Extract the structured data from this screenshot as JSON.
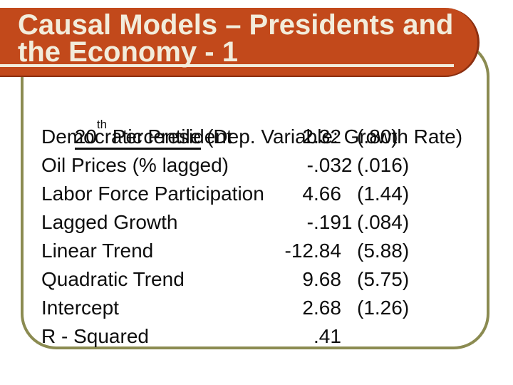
{
  "slide": {
    "title": {
      "line1": "Causal Models – Presidents and",
      "line2": "the Economy - 1"
    },
    "regression": {
      "header": {
        "percentile_number": "20",
        "percentile_superscript": "th",
        "percentile_rest": " Percentile",
        "dependent_variable_note": " (Dep. Variable: Growth Rate)"
      },
      "rows": [
        {
          "label": "Democratic President",
          "coefficient": "2.32",
          "standard_error": "(.80)"
        },
        {
          "label": "Oil Prices (% lagged)",
          "coefficient": "-.032",
          "standard_error": "(.016)"
        },
        {
          "label": "Labor Force Participation",
          "coefficient": "4.66",
          "standard_error": "(1.44)"
        },
        {
          "label": "Lagged Growth",
          "coefficient": "-.191",
          "standard_error": "(.084)"
        },
        {
          "label": "Linear Trend",
          "coefficient": "-12.84",
          "standard_error": "(5.88)"
        },
        {
          "label": "Quadratic Trend",
          "coefficient": "9.68",
          "standard_error": "(5.75)"
        },
        {
          "label": "Intercept",
          "coefficient": "2.68",
          "standard_error": "(1.26)"
        },
        {
          "label": "R - Squared",
          "coefficient": ".41",
          "standard_error": ""
        }
      ]
    },
    "colors": {
      "banner_orange": "#C2491B",
      "banner_dark_edge": "#8B2F10",
      "frame_olive": "#8B8B51",
      "title_cream": "#F2ECDB",
      "body_text": "#0E0E0E",
      "background": "#FFFFFF"
    }
  }
}
